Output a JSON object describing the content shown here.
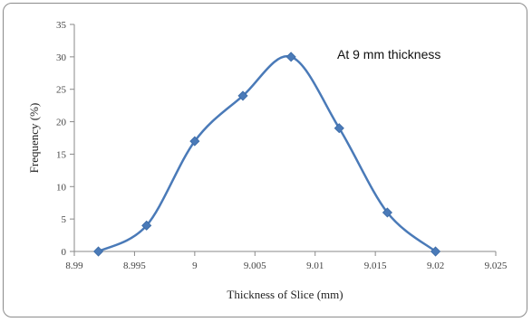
{
  "chart_data": {
    "type": "line",
    "title": "",
    "xlabel": "Thickness of Slice (mm)",
    "ylabel": "Frequency (%)",
    "annotation": "At 9 mm thickness",
    "xlim": [
      8.99,
      9.025
    ],
    "ylim": [
      0,
      35
    ],
    "x_ticks": [
      8.99,
      8.995,
      9,
      9.005,
      9.01,
      9.015,
      9.02,
      9.025
    ],
    "x_tick_labels": [
      "8.99",
      "8.995",
      "9",
      "9.005",
      "9.01",
      "9.015",
      "9.02",
      "9.025"
    ],
    "y_ticks": [
      0,
      5,
      10,
      15,
      20,
      25,
      30,
      35
    ],
    "y_tick_labels": [
      "0",
      "5",
      "10",
      "15",
      "20",
      "25",
      "30",
      "35"
    ],
    "grid": false,
    "marker": "diamond",
    "smooth": true,
    "series": [
      {
        "x": [
          8.992,
          8.996,
          9.0,
          9.004,
          9.008,
          9.012,
          9.016,
          9.02
        ],
        "y": [
          0,
          4,
          17,
          24,
          30,
          19,
          6,
          0
        ]
      }
    ],
    "colors": {
      "series": "#4a7ab8",
      "axis": "#8a8a8a"
    }
  }
}
